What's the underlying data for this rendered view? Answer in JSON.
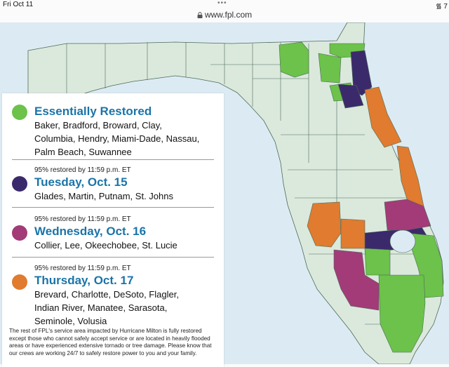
{
  "statusbar": {
    "date": "Fri Oct 11",
    "dots": "•••",
    "right": "᯾ 7"
  },
  "urlbar": {
    "url": "www.fpl.com"
  },
  "colors": {
    "restored": "#6cc24a",
    "oct15": "#3b2a6b",
    "oct16": "#a33b78",
    "oct17": "#e07b2f",
    "unaffected": "#dbe9dc",
    "water": "#dcebf3",
    "heading": "#1b74a8"
  },
  "legend": {
    "restored": {
      "heading": "Essentially Restored",
      "line1": "Baker, Bradford, Broward, Clay,",
      "line2": "Columbia, Hendry, Miami-Dade, Nassau,",
      "line3": "Palm Beach, Suwannee"
    },
    "oct15": {
      "pre": "95% restored by 11:59 p.m. ET",
      "heading": "Tuesday, Oct. 15",
      "line1": "Glades, Martin, Putnam, St. Johns"
    },
    "oct16": {
      "pre": "95% restored by 11:59 p.m. ET",
      "heading": "Wednesday, Oct. 16",
      "line1": "Collier, Lee, Okeechobee, St. Lucie"
    },
    "oct17": {
      "pre": "95% restored by 11:59 p.m. ET",
      "heading": "Thursday, Oct. 17",
      "line1": "Brevard, Charlotte, DeSoto, Flagler,",
      "line2": "Indian River, Manatee, Sarasota,",
      "line3": "Seminole, Volusia"
    },
    "footnote": "The rest of FPL's service area impacted by Hurricane Milton is fully restored except those who cannot safely accept service or are located in heavily flooded areas or have experienced extensive tornado or tree damage. Please know that our crews are working 24/7 to safely restore power to you and your family."
  }
}
